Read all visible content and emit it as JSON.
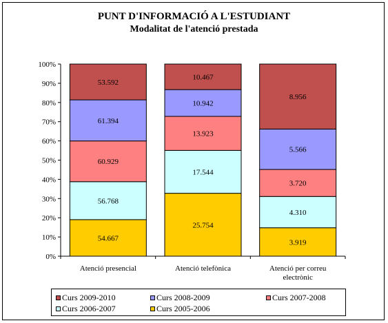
{
  "chart_data": {
    "type": "bar",
    "stacked": "percent",
    "title": "PUNT D'INFORMACIÓ A L'ESTUDIANT",
    "subtitle": "Modalitat de l'atenció prestada",
    "categories": [
      "Atenció presencial",
      "Atenció telefònica",
      "Atenció per correu electrònic"
    ],
    "category_lines": [
      [
        "Atenció presencial"
      ],
      [
        "Atenció telefònica"
      ],
      [
        "Atenció per correu",
        "electrònic"
      ]
    ],
    "series": [
      {
        "name": "Curs 2005-2006",
        "color": "#FFCC00",
        "values": [
          54667,
          25754,
          3919
        ],
        "labels": [
          "54.667",
          "25.754",
          "3.919"
        ]
      },
      {
        "name": "Curs 2006-2007",
        "color": "#CCFFFF",
        "values": [
          56768,
          17544,
          4310
        ],
        "labels": [
          "56.768",
          "17.544",
          "4.310"
        ]
      },
      {
        "name": "Curs 2007-2008",
        "color": "#FF8080",
        "values": [
          60929,
          13923,
          3720
        ],
        "labels": [
          "60.929",
          "13.923",
          "3.720"
        ]
      },
      {
        "name": "Curs 2008-2009",
        "color": "#9999FF",
        "values": [
          61394,
          10942,
          5566
        ],
        "labels": [
          "61.394",
          "10.942",
          "5.566"
        ]
      },
      {
        "name": "Curs 2009-2010",
        "color": "#C0504D",
        "values": [
          53592,
          10467,
          8956
        ],
        "labels": [
          "53.592",
          "10.467",
          "8.956"
        ]
      }
    ],
    "yticks": [
      "0%",
      "10%",
      "20%",
      "30%",
      "40%",
      "50%",
      "60%",
      "70%",
      "80%",
      "90%",
      "100%"
    ],
    "ylim": [
      0,
      100
    ],
    "grid": false,
    "legend": {
      "position": "bottom",
      "order": [
        "Curs 2009-2010",
        "Curs 2008-2009",
        "Curs 2007-2008",
        "Curs 2006-2007",
        "Curs 2005-2006"
      ]
    }
  }
}
